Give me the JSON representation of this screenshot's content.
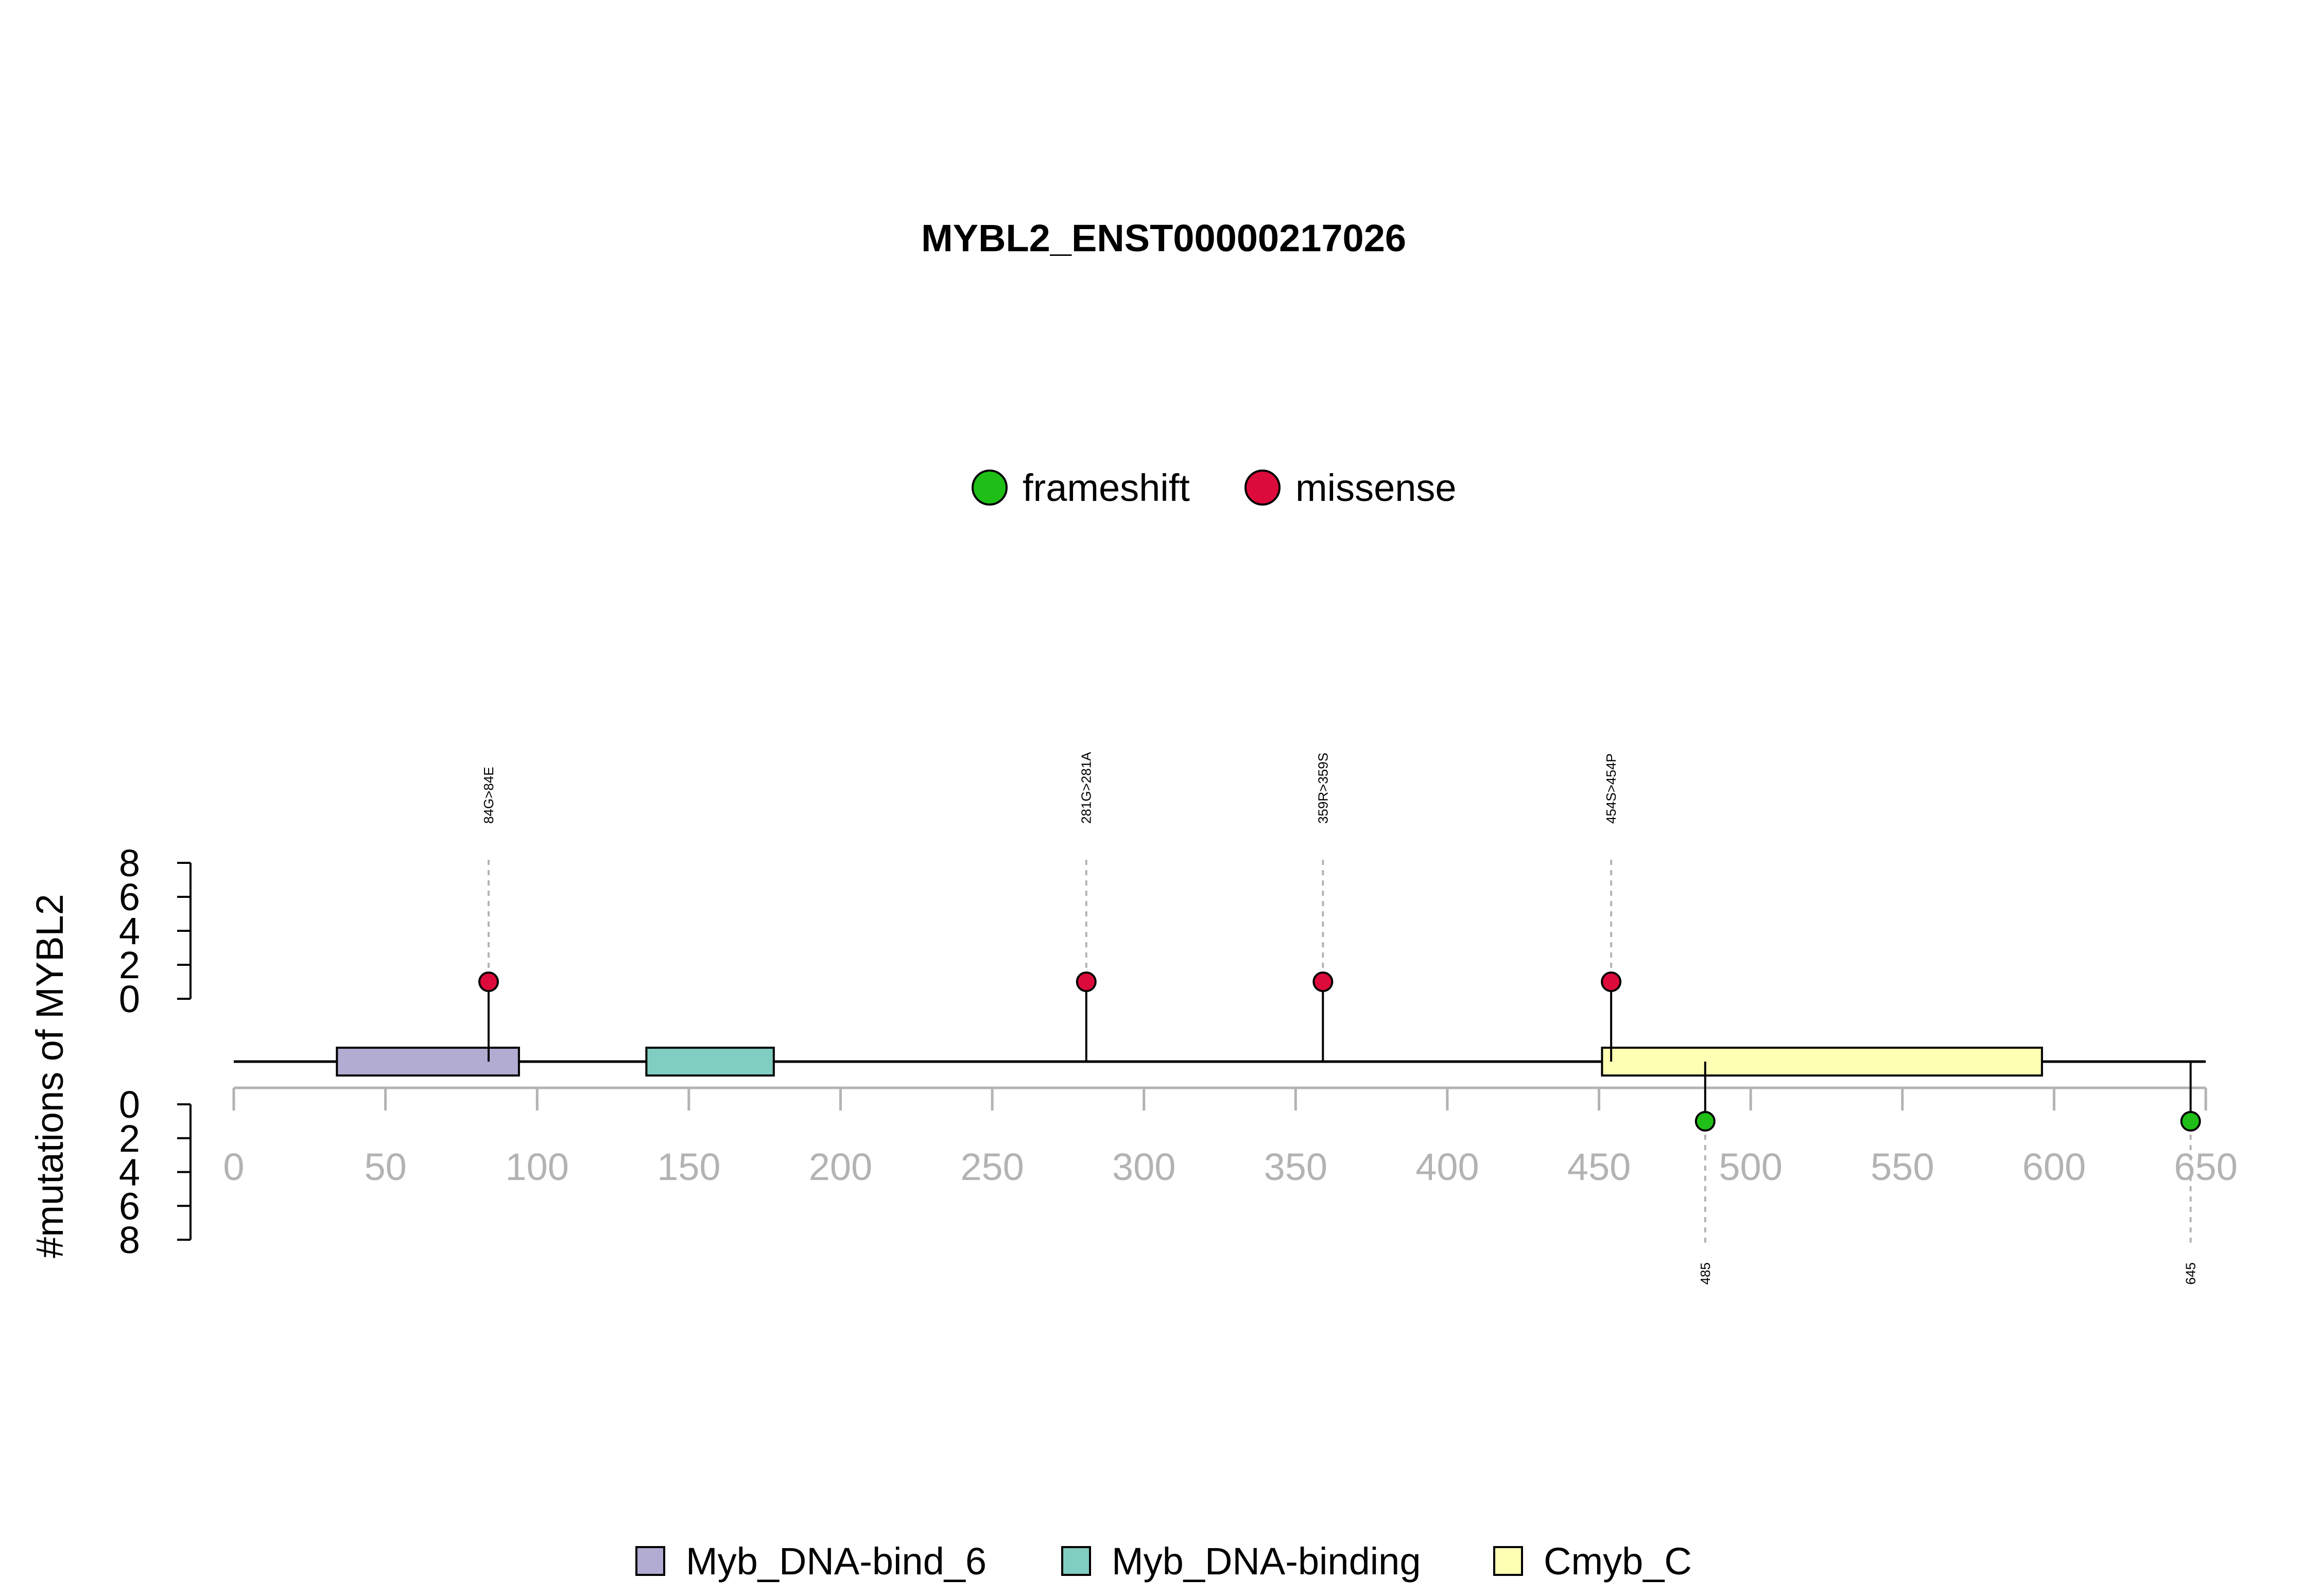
{
  "chart_data": {
    "type": "lollipop",
    "title": "MYBL2_ENST00000217026",
    "ylabel": "#mutations of MYBL2",
    "protein_length": 650,
    "xlim": [
      0,
      650
    ],
    "xticks": [
      0,
      50,
      100,
      150,
      200,
      250,
      300,
      350,
      400,
      450,
      500,
      550,
      600,
      650
    ],
    "ylim_top": [
      0,
      8
    ],
    "yticks_top": [
      0,
      2,
      4,
      6,
      8
    ],
    "ylim_bottom": [
      0,
      8
    ],
    "yticks_bottom": [
      0,
      2,
      4,
      6,
      8
    ],
    "mutation_types": [
      {
        "name": "frameshift",
        "color": "#1FBF17"
      },
      {
        "name": "missense",
        "color": "#DC0B3C"
      }
    ],
    "domains": [
      {
        "name": "Myb_DNA-bind_6",
        "start": 34,
        "end": 94,
        "color": "#B2ABD2"
      },
      {
        "name": "Myb_DNA-binding",
        "start": 136,
        "end": 178,
        "color": "#80CDC1"
      },
      {
        "name": "Cmyb_C",
        "start": 451,
        "end": 596,
        "color": "#FFFFB3"
      }
    ],
    "mutations": [
      {
        "position": 84,
        "label": "84G>84E",
        "count": 1,
        "type": "missense",
        "side": "top"
      },
      {
        "position": 281,
        "label": "281G>281A",
        "count": 1,
        "type": "missense",
        "side": "top"
      },
      {
        "position": 359,
        "label": "359R>359S",
        "count": 1,
        "type": "missense",
        "side": "top"
      },
      {
        "position": 454,
        "label": "454S>454P",
        "count": 1,
        "type": "missense",
        "side": "top"
      },
      {
        "position": 485,
        "label": "485",
        "count": 1,
        "type": "frameshift",
        "side": "bottom"
      },
      {
        "position": 645,
        "label": "645",
        "count": 1,
        "type": "frameshift",
        "side": "bottom"
      }
    ],
    "legend_top": [
      "frameshift",
      "missense"
    ],
    "legend_bottom": [
      "Myb_DNA-bind_6",
      "Myb_DNA-binding",
      "Cmyb_C"
    ]
  }
}
